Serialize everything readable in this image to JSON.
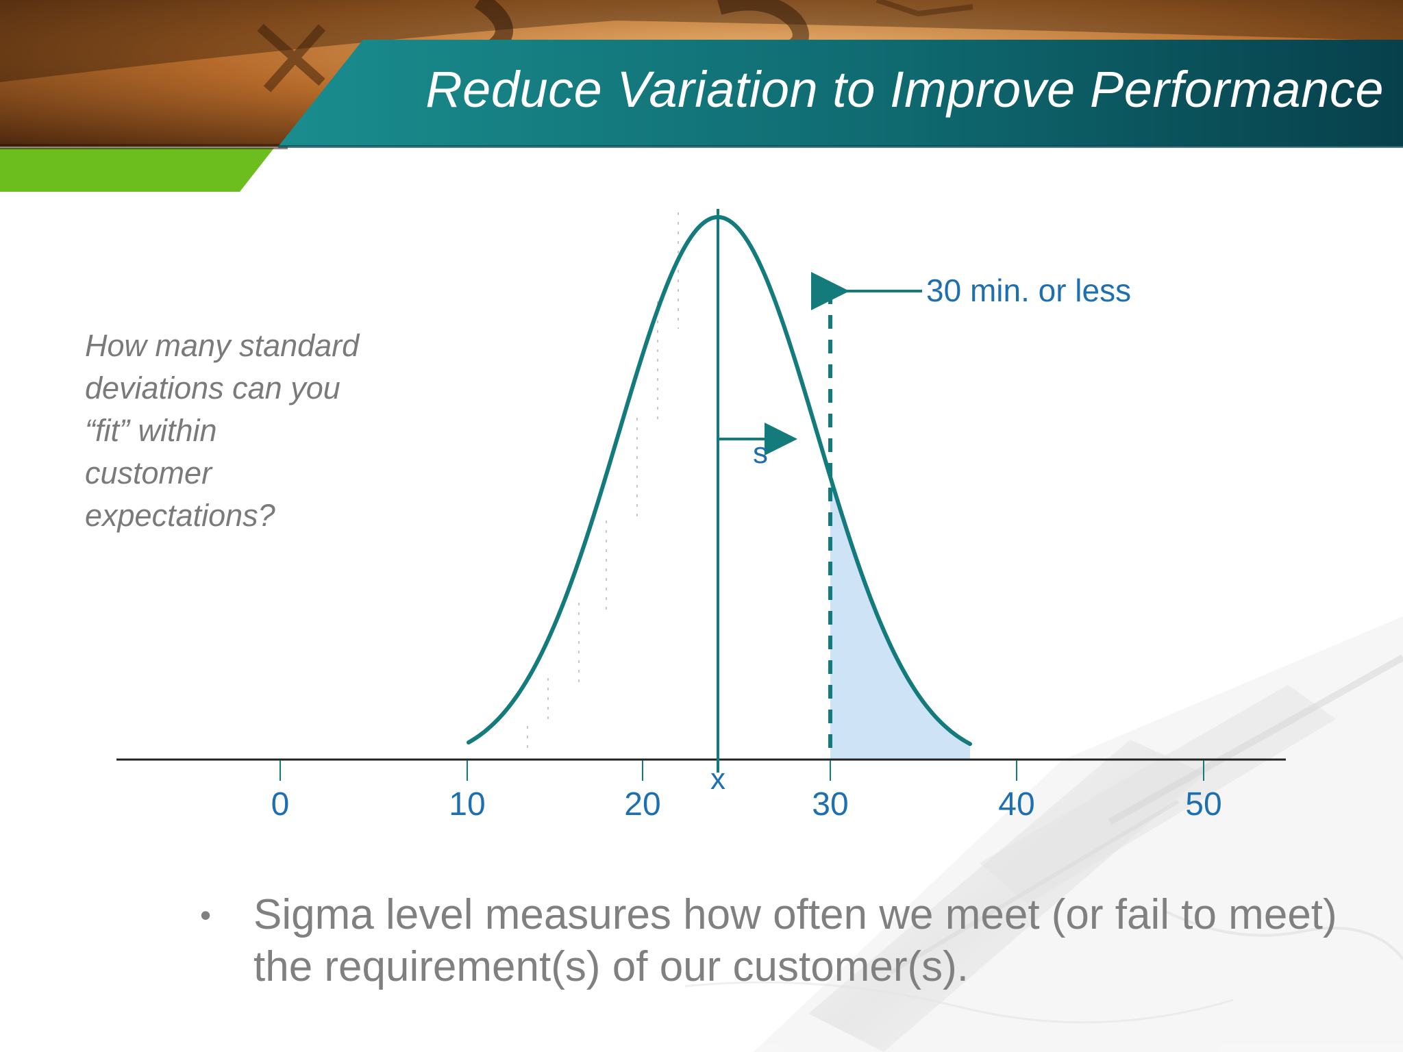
{
  "slide": {
    "title": "Reduce Variation to Improve Performance",
    "question_lines": [
      "How many standard",
      "deviations can you",
      "“fit” within",
      "customer",
      "expectations?"
    ],
    "bullet_marker": "•",
    "bullet_text": "Sigma level measures how often we meet (or fail to meet) the requirement(s) of our customer(s)."
  },
  "diagram": {
    "axis_ticks": [
      "0",
      "10",
      "20",
      "30",
      "40",
      "50"
    ],
    "mean_label": "x",
    "stddev_label": "s",
    "limit_label": "30 min. or less"
  },
  "colors": {
    "teal": "#137b7b",
    "label_blue": "#1e6fb0",
    "tail_fill": "#cfe3f7",
    "title_band": "#0f6f73",
    "accent_green": "#6cbd1e",
    "text_gray": "#7a7a7a"
  }
}
